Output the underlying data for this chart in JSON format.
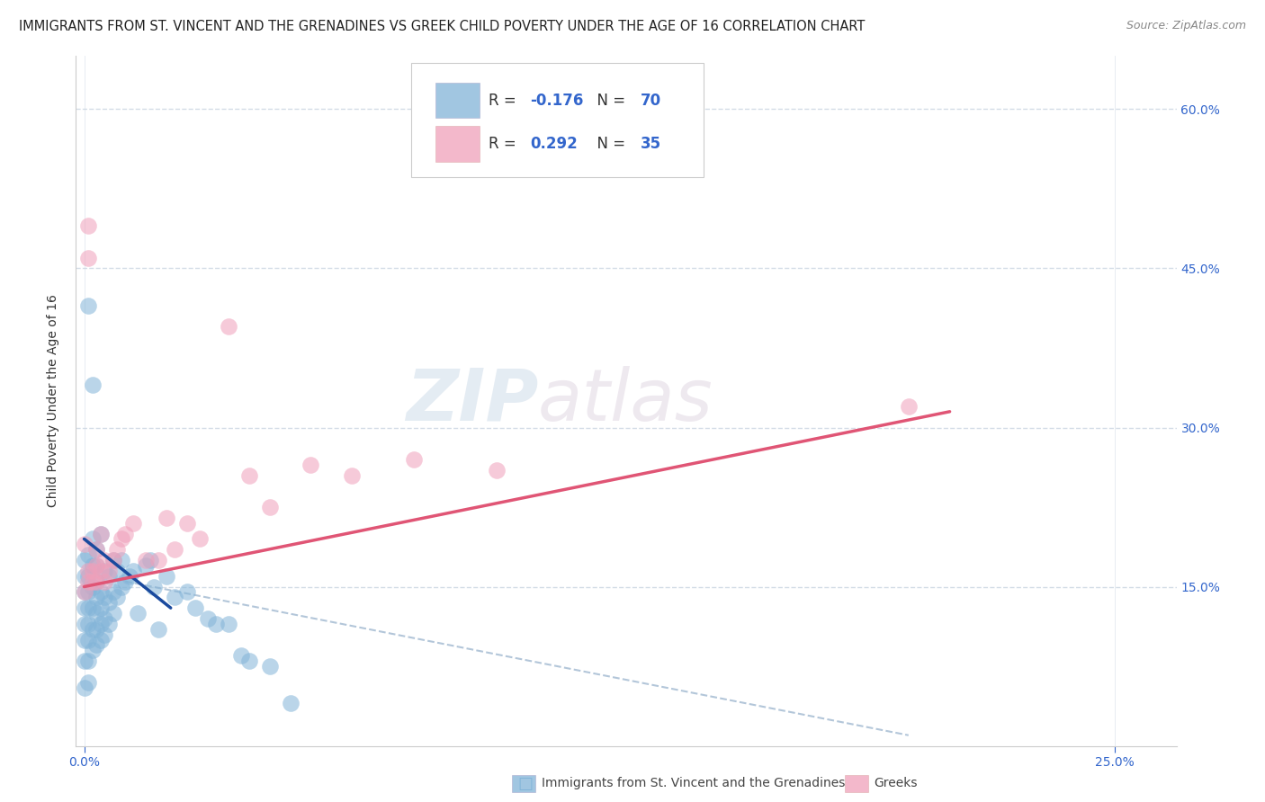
{
  "title": "IMMIGRANTS FROM ST. VINCENT AND THE GRENADINES VS GREEK CHILD POVERTY UNDER THE AGE OF 16 CORRELATION CHART",
  "source": "Source: ZipAtlas.com",
  "ylabel_left": "Child Poverty Under the Age of 16",
  "ytick_vals": [
    0.15,
    0.3,
    0.45,
    0.6
  ],
  "ytick_labels": [
    "15.0%",
    "30.0%",
    "45.0%",
    "60.0%"
  ],
  "xtick_vals": [
    0.0,
    0.25
  ],
  "xtick_labels": [
    "0.0%",
    "25.0%"
  ],
  "watermark_zip": "ZIP",
  "watermark_atlas": "atlas",
  "blue_color": "#82b4d8",
  "pink_color": "#f0a0ba",
  "blue_line_color": "#1a4a9e",
  "pink_line_color": "#e05575",
  "dashed_line_color": "#a0b8d0",
  "bg_color": "#ffffff",
  "grid_color": "#c8d4e0",
  "scatter_blue_x": [
    0.0,
    0.0,
    0.0,
    0.0,
    0.0,
    0.0,
    0.0,
    0.0,
    0.001,
    0.001,
    0.001,
    0.001,
    0.001,
    0.001,
    0.001,
    0.001,
    0.001,
    0.002,
    0.002,
    0.002,
    0.002,
    0.002,
    0.002,
    0.002,
    0.003,
    0.003,
    0.003,
    0.003,
    0.003,
    0.003,
    0.003,
    0.004,
    0.004,
    0.004,
    0.004,
    0.004,
    0.005,
    0.005,
    0.005,
    0.005,
    0.006,
    0.006,
    0.006,
    0.007,
    0.007,
    0.007,
    0.008,
    0.008,
    0.009,
    0.009,
    0.01,
    0.011,
    0.012,
    0.013,
    0.015,
    0.016,
    0.017,
    0.018,
    0.02,
    0.022,
    0.025,
    0.027,
    0.03,
    0.032,
    0.035,
    0.038,
    0.04,
    0.045,
    0.05
  ],
  "scatter_blue_y": [
    0.055,
    0.08,
    0.1,
    0.115,
    0.13,
    0.145,
    0.16,
    0.175,
    0.06,
    0.08,
    0.1,
    0.115,
    0.13,
    0.145,
    0.16,
    0.18,
    0.415,
    0.09,
    0.11,
    0.13,
    0.15,
    0.17,
    0.195,
    0.34,
    0.095,
    0.11,
    0.125,
    0.14,
    0.155,
    0.17,
    0.185,
    0.1,
    0.115,
    0.13,
    0.145,
    0.2,
    0.105,
    0.12,
    0.14,
    0.165,
    0.115,
    0.135,
    0.16,
    0.125,
    0.145,
    0.175,
    0.14,
    0.165,
    0.15,
    0.175,
    0.155,
    0.16,
    0.165,
    0.125,
    0.17,
    0.175,
    0.15,
    0.11,
    0.16,
    0.14,
    0.145,
    0.13,
    0.12,
    0.115,
    0.115,
    0.085,
    0.08,
    0.075,
    0.04
  ],
  "scatter_pink_x": [
    0.0,
    0.0,
    0.001,
    0.001,
    0.001,
    0.001,
    0.002,
    0.002,
    0.003,
    0.003,
    0.003,
    0.004,
    0.004,
    0.005,
    0.005,
    0.006,
    0.007,
    0.008,
    0.009,
    0.01,
    0.012,
    0.015,
    0.018,
    0.02,
    0.022,
    0.025,
    0.028,
    0.035,
    0.04,
    0.045,
    0.055,
    0.065,
    0.08,
    0.1,
    0.2
  ],
  "scatter_pink_y": [
    0.145,
    0.19,
    0.155,
    0.165,
    0.49,
    0.46,
    0.155,
    0.165,
    0.155,
    0.17,
    0.185,
    0.165,
    0.2,
    0.155,
    0.175,
    0.165,
    0.175,
    0.185,
    0.195,
    0.2,
    0.21,
    0.175,
    0.175,
    0.215,
    0.185,
    0.21,
    0.195,
    0.395,
    0.255,
    0.225,
    0.265,
    0.255,
    0.27,
    0.26,
    0.32
  ],
  "blue_line_x": [
    0.0,
    0.021
  ],
  "blue_line_y": [
    0.195,
    0.13
  ],
  "pink_line_x": [
    0.0,
    0.21
  ],
  "pink_line_y": [
    0.15,
    0.315
  ],
  "dashed_line_x": [
    0.01,
    0.2
  ],
  "dashed_line_y": [
    0.155,
    0.01
  ],
  "xlim": [
    -0.002,
    0.265
  ],
  "ylim": [
    0.0,
    0.65
  ],
  "title_fontsize": 10.5,
  "source_fontsize": 9,
  "tick_fontsize": 10,
  "ylabel_fontsize": 10
}
